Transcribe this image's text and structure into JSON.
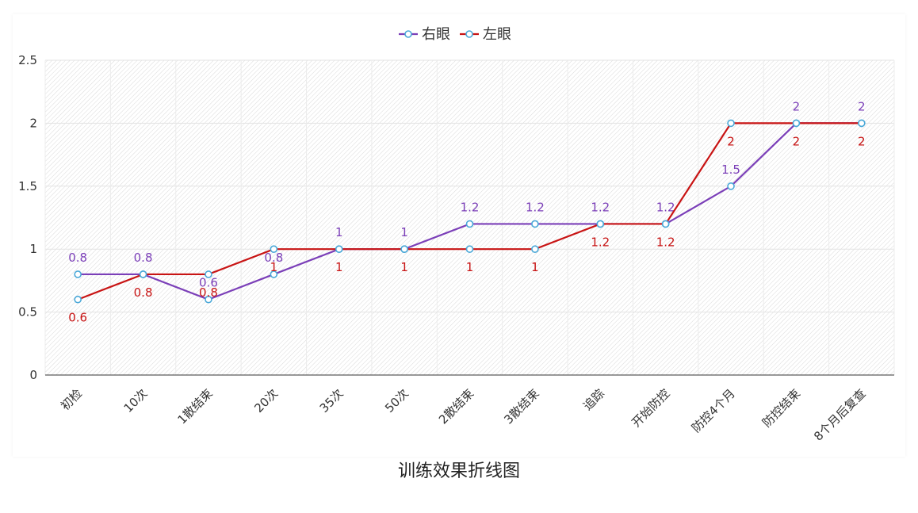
{
  "caption": "训练效果折线图",
  "chart_data": {
    "type": "line",
    "title": "",
    "xlabel": "",
    "ylabel": "",
    "categories": [
      "初检",
      "10次",
      "1散结束",
      "20次",
      "35次",
      "50次",
      "2散结束",
      "3散结束",
      "追踪",
      "开始防控",
      "防控4个月",
      "防控结束",
      "8个月后复查"
    ],
    "ylim": [
      0,
      2.5
    ],
    "yticks": [
      "0",
      "0.5",
      "1",
      "1.5",
      "2",
      "2.5"
    ],
    "legend_position": "top-center",
    "grid": true,
    "series": [
      {
        "name": "右眼",
        "color": "#7b3fb8",
        "label_position": "above",
        "values": [
          0.8,
          0.8,
          0.6,
          0.8,
          1,
          1,
          1.2,
          1.2,
          1.2,
          1.2,
          1.5,
          2,
          2
        ],
        "labels": [
          "0.8",
          "0.8",
          "0.6",
          "0.8",
          "1",
          "1",
          "1.2",
          "1.2",
          "1.2",
          "1.2",
          "1.5",
          "2",
          "2"
        ]
      },
      {
        "name": "左眼",
        "color": "#c81414",
        "label_position": "below",
        "values": [
          0.6,
          0.8,
          0.8,
          1,
          1,
          1,
          1,
          1,
          1.2,
          1.2,
          2,
          2,
          2
        ],
        "labels": [
          "0.6",
          "0.8",
          "0.8",
          "1",
          "1",
          "1",
          "1",
          "1",
          "1.2",
          "1.2",
          "2",
          "2",
          "2"
        ]
      }
    ]
  }
}
